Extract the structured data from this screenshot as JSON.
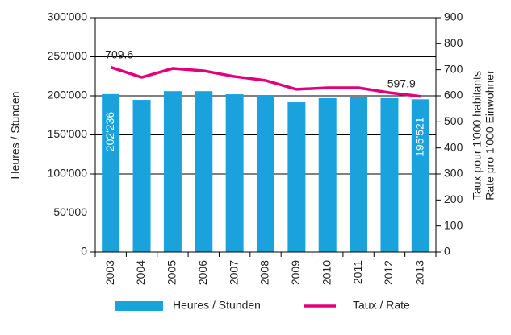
{
  "chart_data": {
    "type": "bar_line",
    "categories": [
      "2003",
      "2004",
      "2005",
      "2006",
      "2007",
      "2008",
      "2009",
      "2010",
      "2011",
      "2012",
      "2013"
    ],
    "series": [
      {
        "name": "Heures / Stunden",
        "type": "bar",
        "color": "#19a2dc",
        "values": [
          202236,
          194800,
          206000,
          206000,
          202000,
          200000,
          191700,
          197000,
          198000,
          197000,
          195521
        ],
        "value_labels": [
          "202'236",
          null,
          null,
          null,
          null,
          null,
          null,
          null,
          null,
          null,
          "195'521"
        ]
      },
      {
        "name": "Taux / Rate",
        "type": "line",
        "axis": "y2",
        "color": "#e0007a",
        "values": [
          709.6,
          671,
          705,
          696,
          674,
          659,
          625,
          631,
          631,
          612,
          597.9
        ],
        "value_labels": [
          "709.6",
          null,
          null,
          null,
          null,
          null,
          null,
          null,
          null,
          null,
          "597.9"
        ]
      }
    ],
    "ylabel": "Heures / Stunden",
    "y2label": [
      "Taux pour 1'000 habitants",
      "Rate pro 1'000 Einwohner"
    ],
    "ylim": [
      0,
      300000
    ],
    "yticks": [
      {
        "value": 0,
        "label": "0"
      },
      {
        "value": 50000,
        "label": "50'000"
      },
      {
        "value": 100000,
        "label": "100'000"
      },
      {
        "value": 150000,
        "label": "150'000"
      },
      {
        "value": 200000,
        "label": "200'000"
      },
      {
        "value": 250000,
        "label": "250'000"
      },
      {
        "value": 300000,
        "label": "300'000"
      }
    ],
    "y2lim": [
      0,
      900
    ],
    "y2ticks": [
      0,
      100,
      200,
      300,
      400,
      500,
      600,
      700,
      800,
      900
    ],
    "grid": true
  }
}
